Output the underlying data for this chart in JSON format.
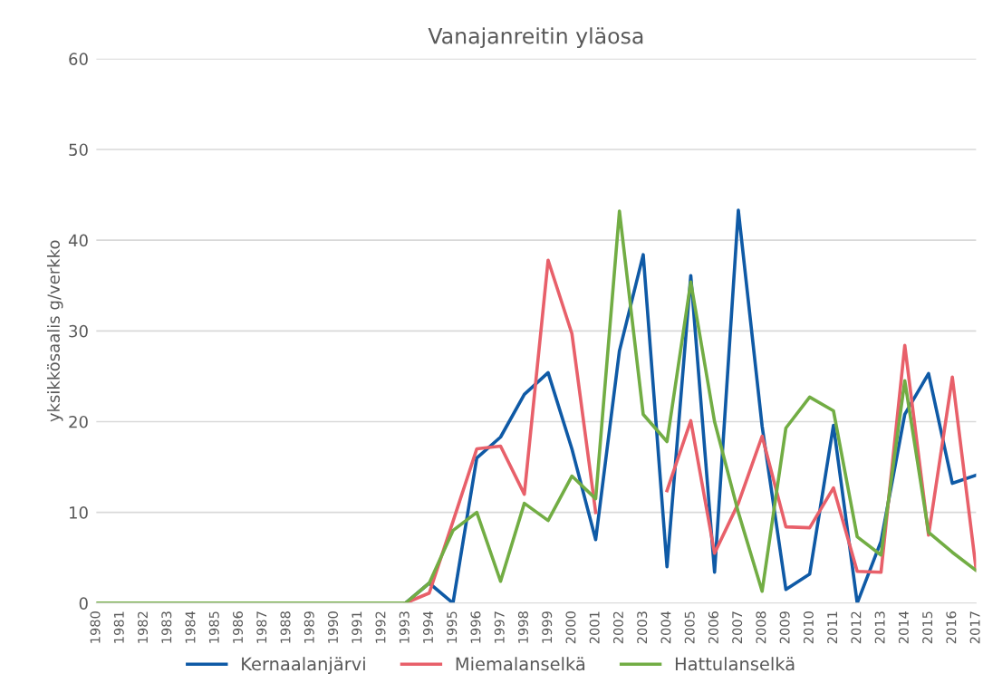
{
  "chart_data": {
    "type": "line",
    "title": "Vanajanreitin yläosa",
    "ylabel": "yksikkösaalis g/verkko",
    "categories": [
      "1980",
      "1981",
      "1982",
      "1983",
      "1984",
      "1985",
      "1986",
      "1987",
      "1988",
      "1989",
      "1990",
      "1991",
      "1992",
      "1993",
      "1994",
      "1995",
      "1996",
      "1997",
      "1998",
      "1999",
      "2000",
      "2001",
      "2002",
      "2003",
      "2004",
      "2005",
      "2006",
      "2007",
      "2008",
      "2009",
      "2010",
      "2011",
      "2012",
      "2013",
      "2014",
      "2015",
      "2016",
      "2017"
    ],
    "series": [
      {
        "name": "Kernaalanjärvi",
        "color": "#0f5aa6",
        "values": [
          null,
          null,
          null,
          null,
          null,
          null,
          null,
          null,
          null,
          null,
          null,
          null,
          null,
          0,
          2.2,
          0,
          16,
          18.3,
          23,
          25.4,
          17,
          7,
          27.8,
          38.4,
          4,
          36.1,
          3.4,
          43.3,
          19.5,
          1.5,
          3.2,
          19.6,
          0,
          6.8,
          20.8,
          25.3,
          13.2,
          14.1
        ]
      },
      {
        "name": "Miemalanselkä",
        "color": "#e8606a",
        "values": [
          null,
          null,
          null,
          null,
          null,
          null,
          null,
          null,
          null,
          null,
          null,
          null,
          null,
          0,
          1.1,
          9,
          17,
          17.3,
          12,
          37.8,
          29.7,
          10,
          null,
          null,
          12.4,
          20.1,
          5.5,
          11,
          18.4,
          8.4,
          8.3,
          12.7,
          3.5,
          3.4,
          28.4,
          7.5,
          24.9,
          3.7
        ]
      },
      {
        "name": "Hattulanselkä",
        "color": "#72ad44",
        "values": [
          0,
          0,
          0,
          0,
          0,
          0,
          0,
          0,
          0,
          0,
          0,
          0,
          0,
          0,
          2.2,
          8,
          10,
          2.4,
          11,
          9.1,
          14,
          11.5,
          43.2,
          20.8,
          17.8,
          35.4,
          20,
          10,
          1.3,
          19.3,
          22.7,
          21.2,
          7.3,
          5.3,
          24.5,
          7.8,
          5.6,
          3.6
        ]
      }
    ],
    "ylim": [
      0,
      60
    ],
    "yticks": [
      0,
      10,
      20,
      30,
      40,
      50,
      60
    ],
    "grid": "y",
    "legend": "bottom",
    "marker": "none",
    "line_style": "solid"
  }
}
